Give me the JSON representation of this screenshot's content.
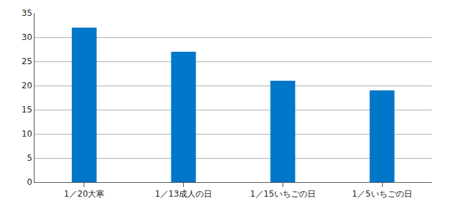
{
  "chart_data": {
    "type": "bar",
    "categories": [
      "1／20大寒",
      "1／13成人の日",
      "1／15いちごの日",
      "1／5いちごの日"
    ],
    "values": [
      32,
      27,
      21,
      19
    ],
    "color": "#0077c8",
    "ylim": [
      0,
      35
    ],
    "yticks": [
      0,
      5,
      10,
      15,
      20,
      25,
      30,
      35
    ],
    "grid": true
  }
}
